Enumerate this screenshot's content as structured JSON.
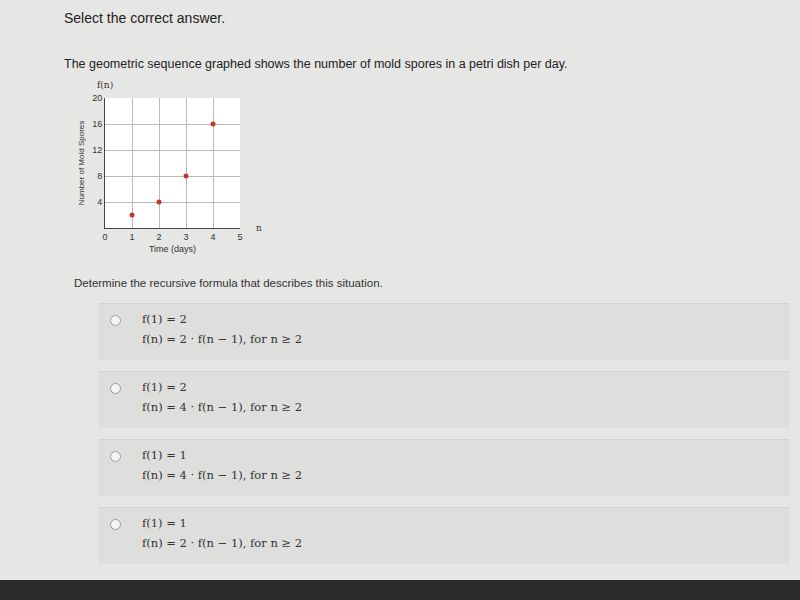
{
  "header": "Select the correct answer.",
  "question": "The geometric sequence graphed shows the number of mold spores in a petri dish per day.",
  "chart_data": {
    "type": "scatter",
    "y_name": "f(n)",
    "x_name": "n",
    "x_label": "Time (days)",
    "y_label": "Number of Mold Spores",
    "x": [
      1,
      2,
      3,
      4
    ],
    "values": [
      2,
      4,
      8,
      16
    ],
    "color": "#c0392b",
    "marker": "circle",
    "xlim": [
      0,
      5
    ],
    "xticks": [
      0,
      1,
      2,
      3,
      4,
      5
    ],
    "ylim": [
      0,
      20
    ],
    "yticks": [
      4,
      8,
      12,
      16,
      20
    ],
    "grid": true
  },
  "prompt": "Determine the recursive formula that describes this situation.",
  "options": [
    [
      "f(1) = 2",
      "f(n) = 2 · f(n − 1), for n ≥ 2"
    ],
    [
      "f(1) = 2",
      "f(n) = 4 · f(n − 1), for n ≥ 2"
    ],
    [
      "f(1) = 1",
      "f(n) = 4 · f(n − 1), for n ≥ 2"
    ],
    [
      "f(1) = 1",
      "f(n) = 2 · f(n − 1), for n ≥ 2"
    ]
  ]
}
